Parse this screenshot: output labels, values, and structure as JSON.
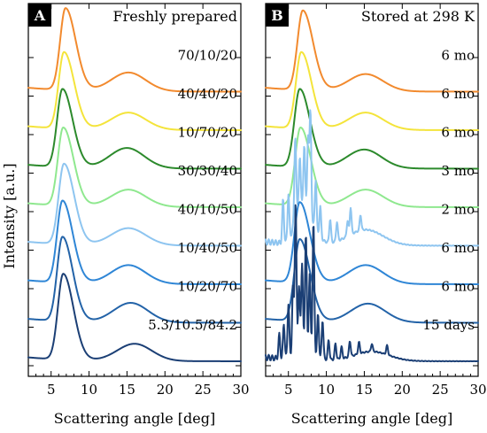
{
  "figure": {
    "ylabel": "Intensity [a.u.]",
    "xlabel": "Scattering angle [deg]"
  },
  "panels": [
    {
      "letter": "A",
      "title": "Freshly prepared"
    },
    {
      "letter": "B",
      "title": "Stored at 298 K"
    }
  ],
  "chart_data": [
    {
      "type": "line",
      "panel": "A",
      "title": "Freshly prepared",
      "xlabel": "Scattering angle [deg]",
      "ylabel": "Intensity [a.u.]",
      "xlim": [
        2,
        30
      ],
      "xticks": [
        5,
        10,
        15,
        20,
        25,
        30
      ],
      "grid": false,
      "series": [
        {
          "name": "70/10/20",
          "color": "#f28a2e",
          "offset": 7,
          "peak_deg": 6.9,
          "peak_height": 1.05,
          "halo_deg": 15.2,
          "halo_height": 0.24,
          "crystalline": false
        },
        {
          "name": "40/40/20",
          "color": "#f4e43b",
          "offset": 6,
          "peak_deg": 6.7,
          "peak_height": 0.98,
          "halo_deg": 15.2,
          "halo_height": 0.22,
          "crystalline": false
        },
        {
          "name": "10/70/20",
          "color": "#2c8a2c",
          "offset": 5,
          "peak_deg": 6.5,
          "peak_height": 1.0,
          "halo_deg": 15.0,
          "halo_height": 0.26,
          "crystalline": false
        },
        {
          "name": "30/30/40",
          "color": "#8fe88f",
          "offset": 4,
          "peak_deg": 6.6,
          "peak_height": 1.0,
          "halo_deg": 15.2,
          "halo_height": 0.22,
          "crystalline": false
        },
        {
          "name": "40/10/50",
          "color": "#8ec5f0",
          "offset": 3,
          "peak_deg": 6.7,
          "peak_height": 1.03,
          "halo_deg": 15.2,
          "halo_height": 0.22,
          "crystalline": false
        },
        {
          "name": "10/40/50",
          "color": "#2f86d6",
          "offset": 2,
          "peak_deg": 6.5,
          "peak_height": 1.05,
          "halo_deg": 15.2,
          "halo_height": 0.24,
          "crystalline": false
        },
        {
          "name": "10/20/70",
          "color": "#2363a8",
          "offset": 1,
          "peak_deg": 6.5,
          "peak_height": 1.08,
          "halo_deg": 15.5,
          "halo_height": 0.25,
          "crystalline": false
        },
        {
          "name": "5.3/10.5/84.2",
          "color": "#1b3f75",
          "offset": 0,
          "peak_deg": 6.6,
          "peak_height": 1.1,
          "halo_deg": 16.0,
          "halo_height": 0.22,
          "crystalline": false
        }
      ]
    },
    {
      "type": "line",
      "panel": "B",
      "title": "Stored at 298 K",
      "xlabel": "Scattering angle [deg]",
      "ylabel": "Intensity [a.u.]",
      "xlim": [
        2,
        30
      ],
      "xticks": [
        5,
        10,
        15,
        20,
        25,
        30
      ],
      "grid": false,
      "series": [
        {
          "name": "6 mo",
          "color": "#f28a2e",
          "offset": 7,
          "peak_deg": 6.9,
          "peak_height": 1.02,
          "halo_deg": 15.2,
          "halo_height": 0.22,
          "crystalline": false
        },
        {
          "name": "6 mo",
          "color": "#f4e43b",
          "offset": 6,
          "peak_deg": 6.7,
          "peak_height": 0.98,
          "halo_deg": 15.2,
          "halo_height": 0.22,
          "crystalline": false
        },
        {
          "name": "6 mo",
          "color": "#2c8a2c",
          "offset": 5,
          "peak_deg": 6.5,
          "peak_height": 1.0,
          "halo_deg": 15.0,
          "halo_height": 0.24,
          "crystalline": false
        },
        {
          "name": "3 mo",
          "color": "#8fe88f",
          "offset": 4,
          "peak_deg": 6.6,
          "peak_height": 1.0,
          "halo_deg": 15.2,
          "halo_height": 0.22,
          "crystalline": false
        },
        {
          "name": "2 mo",
          "color": "#8ec5f0",
          "offset": 3,
          "peak_deg": 6.6,
          "peak_height": 0.55,
          "halo_deg": 15.2,
          "halo_height": 0.2,
          "crystalline": true,
          "bragg_peaks": [
            [
              4.3,
              0.55
            ],
            [
              5.0,
              0.6
            ],
            [
              5.9,
              1.05
            ],
            [
              6.5,
              0.55
            ],
            [
              7.1,
              0.75
            ],
            [
              7.6,
              0.95
            ],
            [
              7.9,
              1.35
            ],
            [
              8.6,
              0.65
            ],
            [
              9.2,
              0.4
            ],
            [
              10.5,
              0.3
            ],
            [
              11.4,
              0.25
            ],
            [
              12.8,
              0.2
            ],
            [
              13.2,
              0.35
            ],
            [
              14.5,
              0.2
            ]
          ]
        },
        {
          "name": "6 mo",
          "color": "#2f86d6",
          "offset": 2,
          "peak_deg": 6.5,
          "peak_height": 1.03,
          "halo_deg": 15.2,
          "halo_height": 0.24,
          "crystalline": false
        },
        {
          "name": "6 mo",
          "color": "#2363a8",
          "offset": 1,
          "peak_deg": 6.5,
          "peak_height": 1.05,
          "halo_deg": 15.5,
          "halo_height": 0.24,
          "crystalline": false
        },
        {
          "name": "15 days",
          "color": "#1b3f75",
          "offset": 0,
          "peak_deg": 6.6,
          "peak_height": 0.15,
          "halo_deg": 16.0,
          "halo_height": 0.12,
          "crystalline": true,
          "bragg_peaks": [
            [
              3.8,
              0.3
            ],
            [
              4.4,
              0.45
            ],
            [
              5.0,
              0.7
            ],
            [
              5.6,
              0.85
            ],
            [
              5.95,
              1.9
            ],
            [
              6.4,
              0.8
            ],
            [
              6.8,
              1.1
            ],
            [
              7.3,
              1.5
            ],
            [
              7.8,
              1.0
            ],
            [
              8.3,
              1.7
            ],
            [
              8.9,
              0.55
            ],
            [
              9.5,
              0.5
            ],
            [
              10.3,
              0.25
            ],
            [
              11.2,
              0.2
            ],
            [
              12.0,
              0.15
            ],
            [
              13.1,
              0.2
            ],
            [
              14.3,
              0.15
            ],
            [
              16.0,
              0.1
            ],
            [
              18.0,
              0.12
            ]
          ]
        }
      ]
    }
  ]
}
